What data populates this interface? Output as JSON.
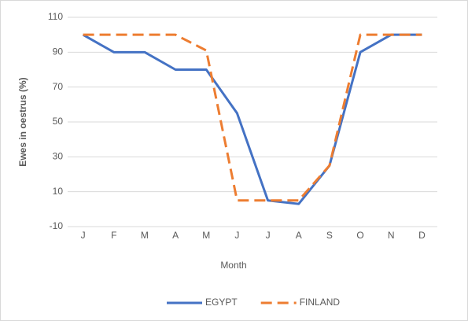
{
  "chart_data": {
    "type": "line",
    "x_label": "Month",
    "y_label": "Ewes in oestrus (%)",
    "categories": [
      "J",
      "F",
      "M",
      "A",
      "M",
      "J",
      "J",
      "A",
      "S",
      "O",
      "N",
      "D"
    ],
    "series": [
      {
        "name": "EGYPT",
        "color": "#4472c4",
        "line_style": "solid",
        "values": [
          100,
          90,
          90,
          80,
          80,
          55,
          5,
          3,
          25,
          90,
          100,
          100
        ]
      },
      {
        "name": "FINLAND",
        "color": "#ed7d31",
        "line_style": "dashed",
        "values": [
          100,
          100,
          100,
          100,
          91,
          5,
          5,
          5,
          25,
          100,
          100,
          100
        ]
      }
    ],
    "ylim": [
      -10,
      110
    ],
    "yticks": [
      -10,
      10,
      30,
      50,
      70,
      90,
      110
    ],
    "grid": true,
    "legend": "bottom"
  }
}
